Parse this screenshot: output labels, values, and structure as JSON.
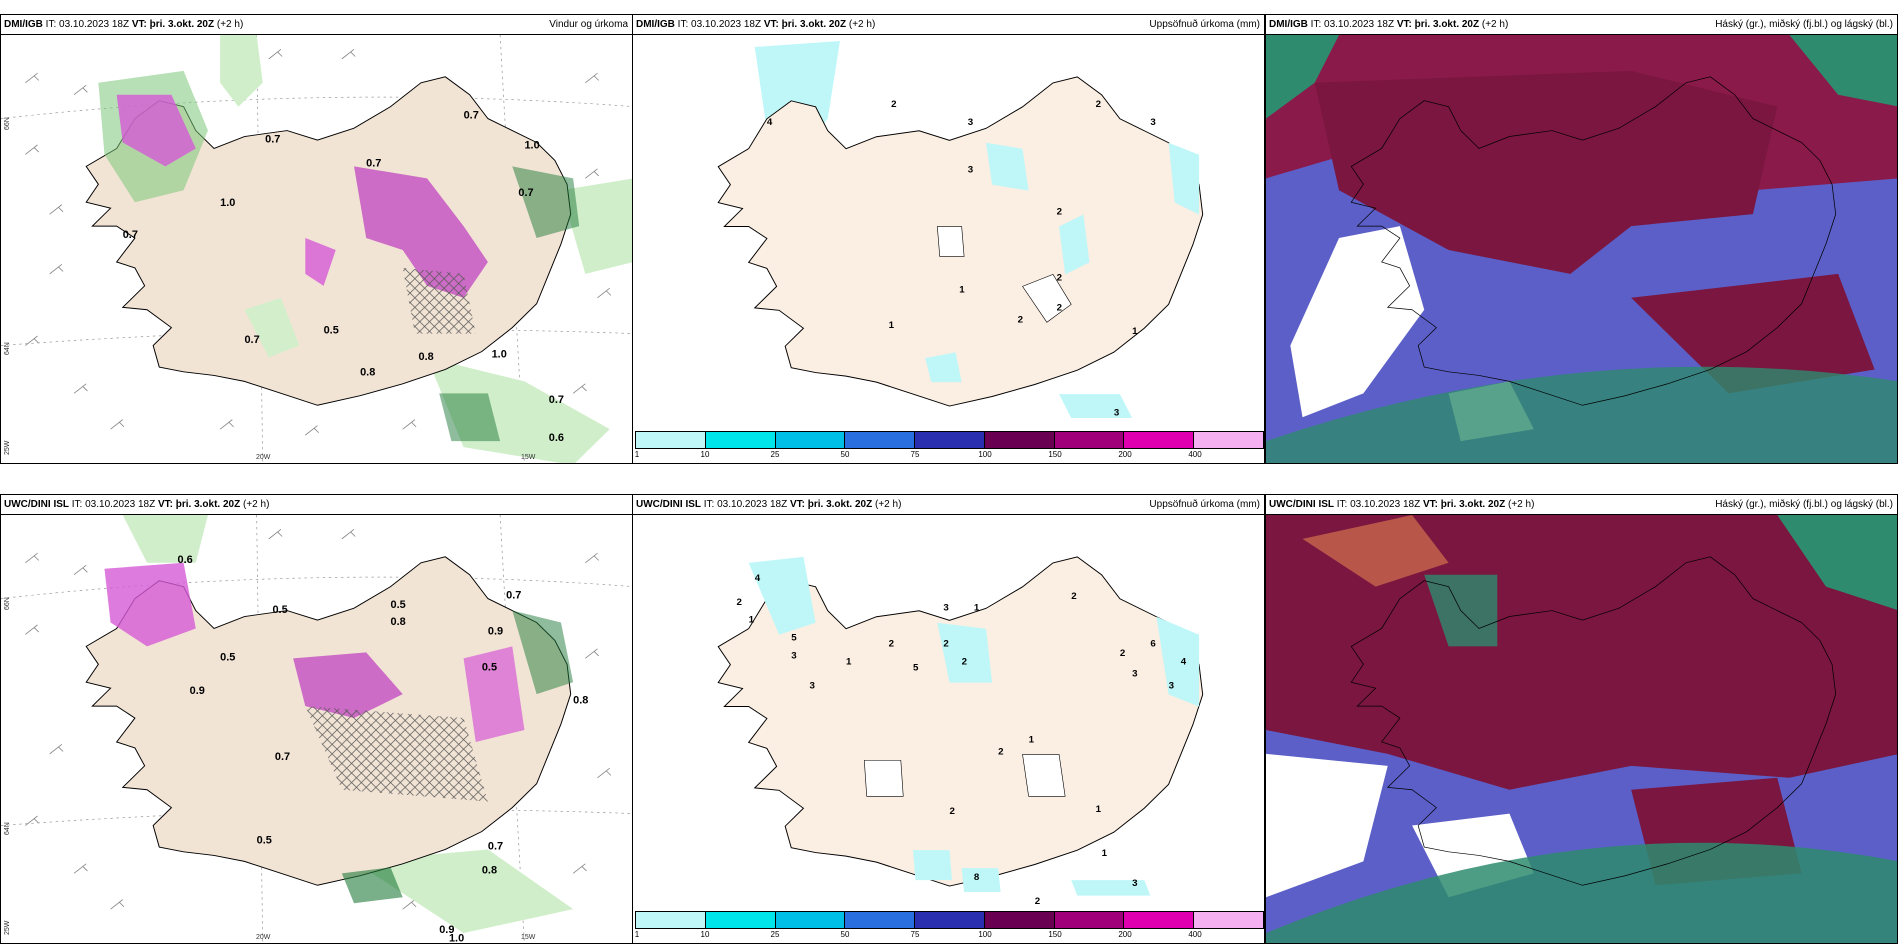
{
  "panels": [
    {
      "model": "DMI/IGB",
      "it_label": "IT:",
      "it": "03.10.2023 18Z",
      "vt_label": "VT:",
      "vt": "þri. 3.okt. 20Z",
      "lead": "(+2 h)",
      "title": "Vindur og úrkoma"
    },
    {
      "model": "DMI/IGB",
      "it_label": "IT:",
      "it": "03.10.2023 18Z",
      "vt_label": "VT:",
      "vt": "þri. 3.okt. 20Z",
      "lead": "(+2 h)",
      "title": "Uppsöfnuð úrkoma (mm)"
    },
    {
      "model": "DMI/IGB",
      "it_label": "IT:",
      "it": "03.10.2023 18Z",
      "vt_label": "VT:",
      "vt": "þri. 3.okt. 20Z",
      "lead": "(+2 h)",
      "title": "Háský (gr.), miðský (fj.bl.) og lágský (bl.)"
    },
    {
      "model": "UWC/DINI ISL",
      "it_label": "IT:",
      "it": "03.10.2023 18Z",
      "vt_label": "VT:",
      "vt": "þri. 3.okt. 20Z",
      "lead": "(+2 h)",
      "title": ""
    },
    {
      "model": "UWC/DINI ISL",
      "it_label": "IT:",
      "it": "03.10.2023 18Z",
      "vt_label": "VT:",
      "vt": "þri. 3.okt. 20Z",
      "lead": "(+2 h)",
      "title": "Uppsöfnuð úrkoma (mm)"
    },
    {
      "model": "UWC/DINI ISL",
      "it_label": "IT:",
      "it": "03.10.2023 18Z",
      "vt_label": "VT:",
      "vt": "þri. 3.okt. 20Z",
      "lead": "(+2 h)",
      "title": "Háský (gr.), miðský (fj.bl.) og lágský (bl.)"
    }
  ],
  "axes": {
    "lat_66": "66N",
    "lat_64": "64N",
    "lon_25": "25W",
    "lon_20": "20W",
    "lon_15": "15W"
  },
  "colorbar": {
    "ticks": [
      "1",
      "10",
      "25",
      "50",
      "75",
      "100",
      "150",
      "200",
      "400"
    ],
    "colors": [
      "#bff7f9",
      "#00e5ea",
      "#00bfe6",
      "#2a6fe0",
      "#2a2fb0",
      "#6a0052",
      "#a0007a",
      "#e000b0",
      "#f4b0f0"
    ]
  },
  "wind_labels_top": [
    "0.7",
    "0.7",
    "1.0",
    "0.7",
    "0.7",
    "0.7",
    "0.8",
    "1.0",
    "0.7",
    "0.6",
    "0.5",
    "0.8",
    "1.0",
    "0.7"
  ],
  "wind_labels_bottom": [
    "0.6",
    "0.5",
    "0.5",
    "0.8",
    "0.9",
    "0.7",
    "0.5",
    "0.8",
    "0.7",
    "0.5",
    "0.9",
    "1.0",
    "0.5",
    "0.9",
    "0.7",
    "0.8"
  ],
  "precip_labels_top": [
    "4",
    "2",
    "3",
    "2",
    "3",
    "3",
    "2",
    "2",
    "2",
    "1",
    "1",
    "2",
    "1",
    "3"
  ],
  "precip_labels_bottom": [
    "4",
    "2",
    "1",
    "5",
    "3",
    "3",
    "1",
    "2",
    "2",
    "2",
    "3",
    "5",
    "1",
    "2",
    "6",
    "3",
    "4",
    "2",
    "1",
    "2",
    "1",
    "2",
    "8",
    "3",
    "2",
    "1",
    "3"
  ]
}
